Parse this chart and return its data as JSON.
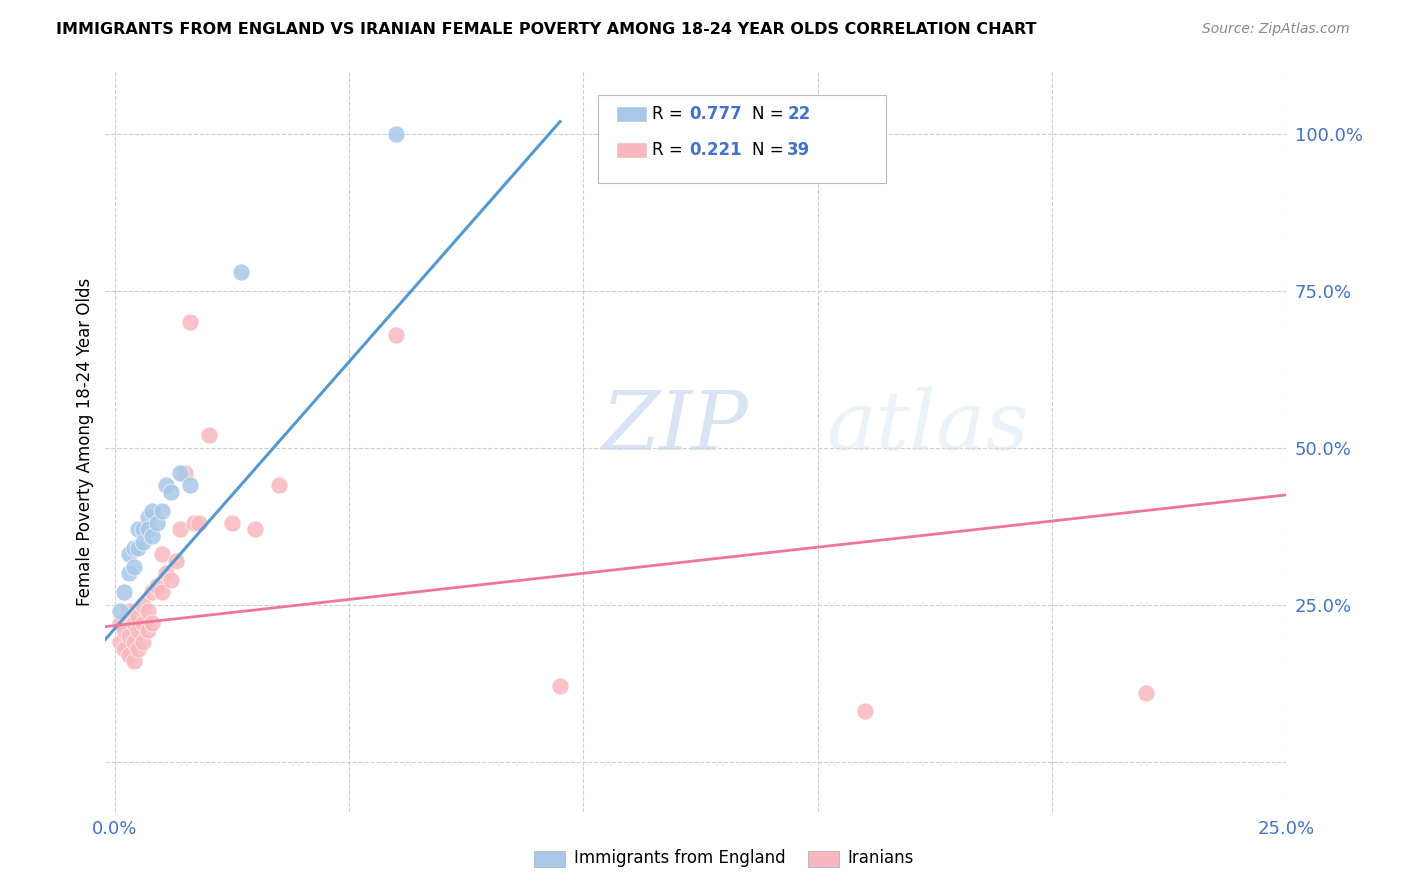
{
  "title": "IMMIGRANTS FROM ENGLAND VS IRANIAN FEMALE POVERTY AMONG 18-24 YEAR OLDS CORRELATION CHART",
  "source": "Source: ZipAtlas.com",
  "ylabel": "Female Poverty Among 18-24 Year Olds",
  "xlim": [
    -0.002,
    0.25
  ],
  "ylim": [
    -0.08,
    1.1
  ],
  "xticks": [
    0.0,
    0.05,
    0.1,
    0.15,
    0.2,
    0.25
  ],
  "xtick_labels": [
    "0.0%",
    "",
    "",
    "",
    "",
    "25.0%"
  ],
  "yticks_right": [
    0.0,
    0.25,
    0.5,
    0.75,
    1.0
  ],
  "ytick_labels_right": [
    "",
    "25.0%",
    "50.0%",
    "75.0%",
    "100.0%"
  ],
  "blue_R": 0.777,
  "blue_N": 22,
  "pink_R": 0.221,
  "pink_N": 39,
  "blue_color": "#a8c8e8",
  "pink_color": "#f8b8c0",
  "blue_line_color": "#5599cc",
  "pink_line_color": "#ee7799",
  "watermark_zip": "ZIP",
  "watermark_atlas": "atlas",
  "blue_scatter_x": [
    0.001,
    0.002,
    0.003,
    0.003,
    0.004,
    0.004,
    0.005,
    0.005,
    0.006,
    0.006,
    0.007,
    0.007,
    0.008,
    0.008,
    0.009,
    0.01,
    0.011,
    0.012,
    0.014,
    0.016,
    0.027,
    0.06
  ],
  "blue_scatter_y": [
    0.24,
    0.27,
    0.3,
    0.33,
    0.34,
    0.31,
    0.37,
    0.34,
    0.37,
    0.35,
    0.39,
    0.37,
    0.4,
    0.36,
    0.38,
    0.4,
    0.44,
    0.43,
    0.46,
    0.44,
    0.78,
    1.0
  ],
  "pink_scatter_x": [
    0.001,
    0.001,
    0.002,
    0.002,
    0.003,
    0.003,
    0.003,
    0.004,
    0.004,
    0.004,
    0.005,
    0.005,
    0.005,
    0.006,
    0.006,
    0.006,
    0.007,
    0.007,
    0.008,
    0.008,
    0.009,
    0.01,
    0.01,
    0.011,
    0.012,
    0.013,
    0.014,
    0.015,
    0.016,
    0.017,
    0.018,
    0.02,
    0.025,
    0.03,
    0.035,
    0.06,
    0.095,
    0.16,
    0.22
  ],
  "pink_scatter_y": [
    0.22,
    0.19,
    0.21,
    0.18,
    0.24,
    0.2,
    0.17,
    0.22,
    0.19,
    0.16,
    0.23,
    0.21,
    0.18,
    0.25,
    0.22,
    0.19,
    0.24,
    0.21,
    0.27,
    0.22,
    0.28,
    0.33,
    0.27,
    0.3,
    0.29,
    0.32,
    0.37,
    0.46,
    0.7,
    0.38,
    0.38,
    0.52,
    0.38,
    0.37,
    0.44,
    0.68,
    0.12,
    0.08,
    0.11
  ],
  "blue_line_x": [
    -0.002,
    0.095
  ],
  "blue_line_y": [
    0.195,
    1.02
  ],
  "pink_line_x": [
    -0.002,
    0.25
  ],
  "pink_line_y": [
    0.215,
    0.425
  ]
}
